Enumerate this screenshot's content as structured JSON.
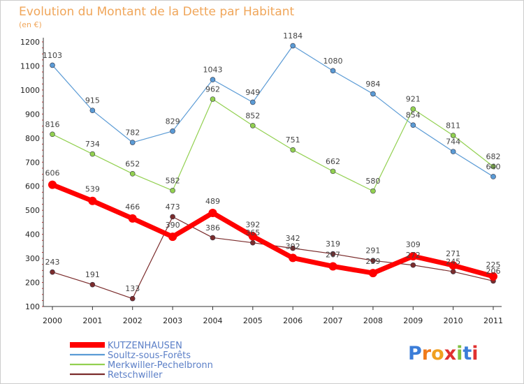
{
  "page": {
    "title": "Evolution du Montant de la Dette par Habitant",
    "unit": "(en €)",
    "brand": "Proxiti"
  },
  "chart_data": {
    "type": "line",
    "x": [
      "2000",
      "2001",
      "2002",
      "2003",
      "2004",
      "2005",
      "2006",
      "2007",
      "2008",
      "2009",
      "2010",
      "2011"
    ],
    "yticks": [
      100,
      200,
      300,
      400,
      500,
      600,
      700,
      800,
      900,
      1000,
      1100,
      1200
    ],
    "ylim": [
      100,
      1200
    ],
    "grid": false,
    "legend_position": "bottom-left",
    "series": [
      {
        "name": "Soultz-sous-Forêts",
        "color": "#5b9bd5",
        "width": 1.2,
        "marker": 3.5,
        "values": [
          1103,
          915,
          782,
          829,
          1043,
          949,
          1184,
          1080,
          984,
          854,
          744,
          640
        ]
      },
      {
        "name": "Merkwiller-Pechelbronn",
        "color": "#92d050",
        "width": 1.2,
        "marker": 3.5,
        "values": [
          816,
          734,
          652,
          582,
          962,
          852,
          751,
          662,
          580,
          921,
          811,
          682
        ]
      },
      {
        "name": "Retschwiller",
        "color": "#7b2c2c",
        "width": 1.2,
        "marker": 3.5,
        "values": [
          243,
          191,
          133,
          473,
          386,
          365,
          342,
          319,
          291,
          272,
          245,
          206
        ]
      },
      {
        "name": "KUTZENHAUSEN",
        "color": "#ff0000",
        "width": 7,
        "marker": 6,
        "values": [
          606,
          539,
          466,
          390,
          489,
          392,
          302,
          267,
          239,
          309,
          271,
          225
        ]
      }
    ],
    "legend_order": [
      "KUTZENHAUSEN",
      "Soultz-sous-Forêts",
      "Merkwiller-Pechelbronn",
      "Retschwiller"
    ]
  }
}
